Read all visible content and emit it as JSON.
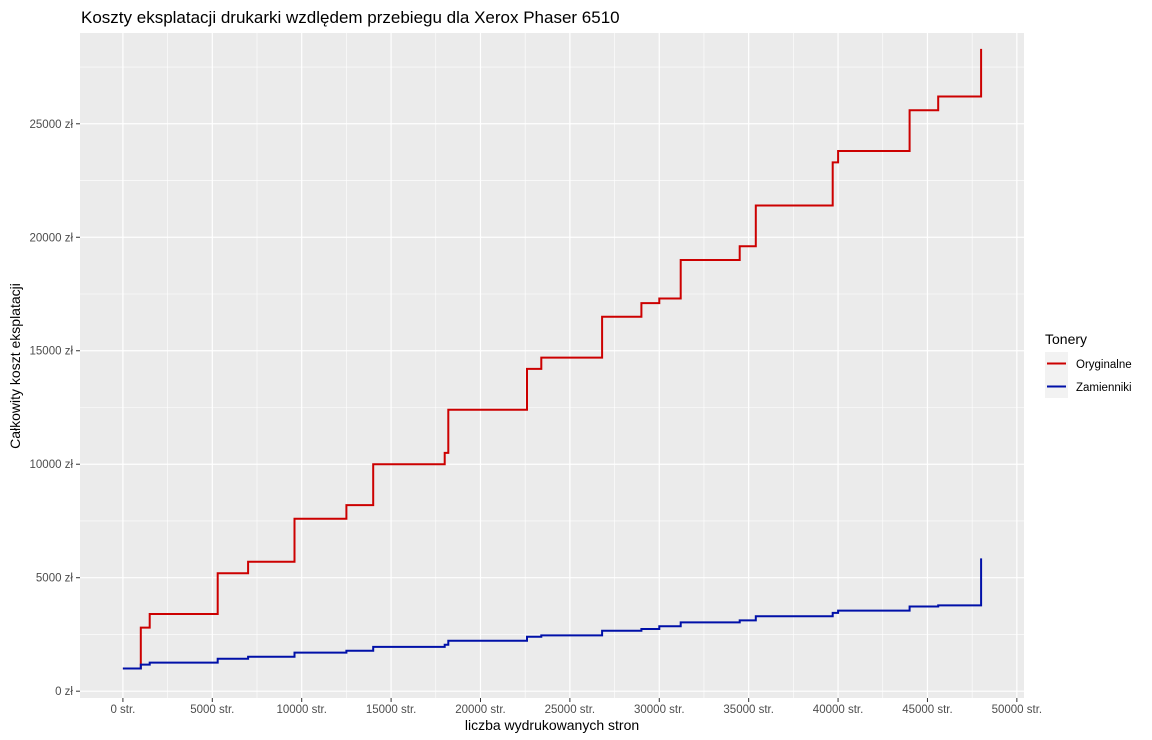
{
  "chart_data": {
    "type": "line",
    "step": true,
    "title": "Koszty eksplatacji drukarki wzdlędem przebiegu dla Xerox Phaser 6510",
    "xlabel": "liczba wydrukowanych stron",
    "ylabel": "Całkowity koszt eksplatacji",
    "xlim": [
      -2400,
      50400
    ],
    "ylim": [
      -300,
      29000
    ],
    "x_ticks": [
      0,
      5000,
      10000,
      15000,
      20000,
      25000,
      30000,
      35000,
      40000,
      45000,
      50000
    ],
    "x_tick_labels": [
      "0  str.",
      "5000  str.",
      "10000  str.",
      "15000  str.",
      "20000  str.",
      "25000  str.",
      "30000  str.",
      "35000  str.",
      "40000  str.",
      "45000  str.",
      "50000  str."
    ],
    "y_ticks": [
      0,
      5000,
      10000,
      15000,
      20000,
      25000
    ],
    "y_tick_labels": [
      "0  zł",
      "5000  zł",
      "10000  zł",
      "15000  zł",
      "20000  zł",
      "25000  zł"
    ],
    "grid": true,
    "legend": {
      "title": "Tonery",
      "position": "right"
    },
    "series": [
      {
        "name": "Oryginalne",
        "color": "#cc0000",
        "x": [
          0,
          1000,
          1000,
          1500,
          1500,
          5300,
          5300,
          7000,
          7000,
          9600,
          9600,
          12500,
          12500,
          14000,
          14000,
          18000,
          18000,
          18200,
          18200,
          22600,
          22600,
          23400,
          23400,
          26800,
          26800,
          29000,
          29000,
          30000,
          30000,
          31200,
          31200,
          34500,
          34500,
          35400,
          35400,
          39700,
          39700,
          40000,
          40000,
          44000,
          44000,
          45600,
          45600,
          48000,
          48000
        ],
        "y": [
          1000,
          1000,
          2800,
          2800,
          3400,
          3400,
          5200,
          5200,
          5700,
          5700,
          7600,
          7600,
          8200,
          8200,
          10000,
          10000,
          10500,
          10500,
          12400,
          12400,
          14200,
          14200,
          14700,
          14700,
          16500,
          16500,
          17100,
          17100,
          17300,
          17300,
          19000,
          19000,
          19600,
          19600,
          21400,
          21400,
          23300,
          23300,
          23800,
          23800,
          25600,
          25600,
          26200,
          26200,
          28300
        ]
      },
      {
        "name": "Zamienniki",
        "color": "#0010a8",
        "x": [
          0,
          1000,
          1000,
          1500,
          1500,
          5300,
          5300,
          7000,
          7000,
          9600,
          9600,
          12500,
          12500,
          14000,
          14000,
          18000,
          18000,
          18200,
          18200,
          22600,
          22600,
          23400,
          23400,
          26800,
          26800,
          29000,
          29000,
          30000,
          30000,
          31200,
          31200,
          34500,
          34500,
          35400,
          35400,
          39700,
          39700,
          40000,
          40000,
          44000,
          44000,
          45600,
          45600,
          48000,
          48000
        ],
        "y": [
          1000,
          1000,
          1170,
          1170,
          1260,
          1260,
          1430,
          1430,
          1520,
          1520,
          1700,
          1700,
          1780,
          1780,
          1950,
          1950,
          2050,
          2050,
          2220,
          2220,
          2400,
          2400,
          2460,
          2460,
          2660,
          2660,
          2740,
          2740,
          2860,
          2860,
          3030,
          3030,
          3120,
          3120,
          3300,
          3300,
          3450,
          3450,
          3550,
          3550,
          3730,
          3730,
          3780,
          3780,
          5850
        ]
      }
    ]
  }
}
